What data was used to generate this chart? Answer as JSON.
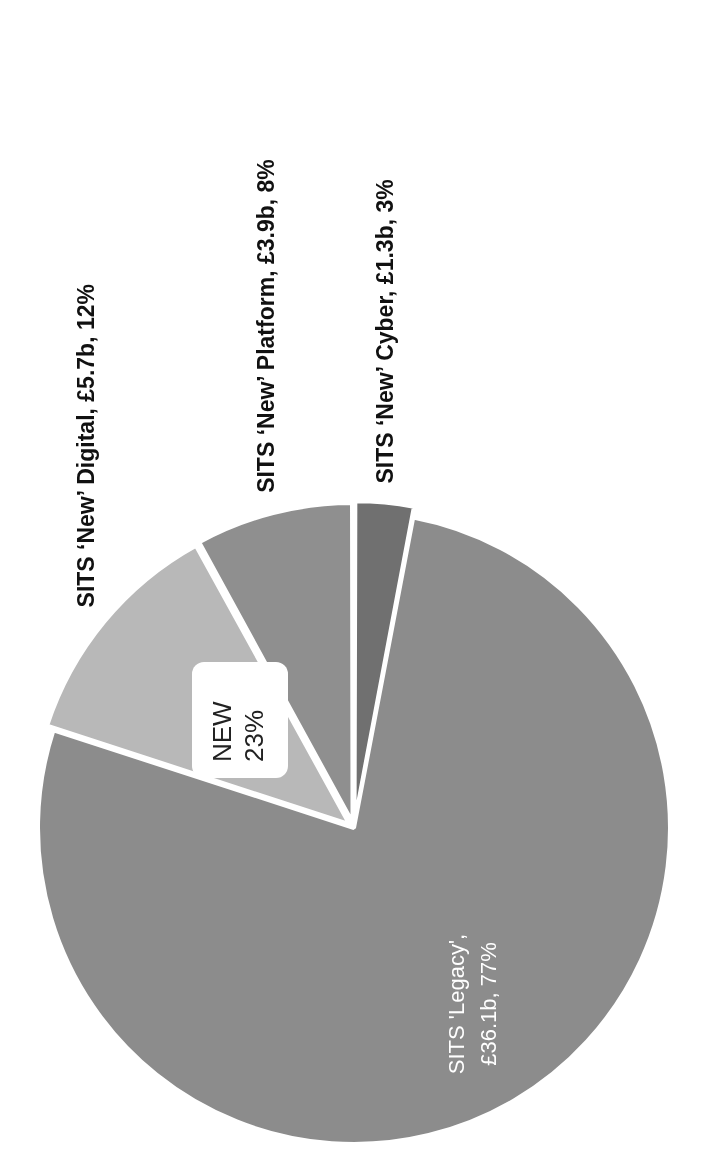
{
  "chart_data": {
    "type": "pie",
    "categories": [
      "SITS ‘New’ Digital, £5.7b, 12%",
      "SITS ‘New’ Platform, £3.9b, 8%",
      "SITS ‘New’ Cyber, £1.3b, 3%",
      "SITS 'Legacy', £36.1b, 77%"
    ],
    "values": [
      12,
      8,
      3,
      77
    ],
    "colors": [
      "#b8b8b8",
      "#8f8f8f",
      "#707070",
      "#8c8c8c"
    ],
    "annotations": [
      "NEW 23%"
    ],
    "legend": false
  }
}
